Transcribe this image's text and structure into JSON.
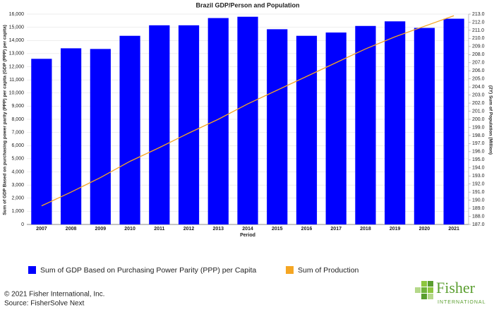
{
  "chart_data": {
    "type": "bar_line",
    "title": "Brazil GDP/Person and Population",
    "x_label": "Period",
    "y_label": "Sum of GDP Based on purchasing power parity (PPP) per capita (GDP (PPP) per capita)",
    "y2_label": "(2Y) Sum of Population (Million)",
    "categories": [
      "2007",
      "2008",
      "2009",
      "2010",
      "2011",
      "2012",
      "2013",
      "2014",
      "2015",
      "2016",
      "2017",
      "2018",
      "2019",
      "2020",
      "2021"
    ],
    "series": [
      {
        "name": "Sum of GDP Based on Purchasing Power Parity (PPP) per Capita",
        "color": "#0000ff",
        "kind": "bar",
        "values": [
          12600,
          13400,
          13350,
          14350,
          15150,
          15150,
          15700,
          15800,
          14850,
          14350,
          14600,
          15100,
          15450,
          14950,
          15650
        ]
      },
      {
        "name": "Sum of Production",
        "color": "#f5a623",
        "kind": "line",
        "axis": "y2",
        "values": [
          189.3,
          191.0,
          192.8,
          194.8,
          196.5,
          198.3,
          200.0,
          201.9,
          203.6,
          205.3,
          207.0,
          208.7,
          210.2,
          211.5,
          212.8
        ]
      }
    ],
    "ylim": [
      0,
      16000
    ],
    "yticks": [
      0,
      {
        "value": 1000,
        "label": "1,000"
      },
      {
        "value": 2000,
        "label": "2,000"
      },
      {
        "value": 3000,
        "label": "3,000"
      },
      {
        "value": 4000,
        "label": "4,000"
      },
      {
        "value": 5000,
        "label": "5,000"
      },
      {
        "value": 6000,
        "label": "6,000"
      },
      {
        "value": 7000,
        "label": "7,000"
      },
      {
        "value": 8000,
        "label": "8,000"
      },
      {
        "value": 9000,
        "label": "9,000"
      },
      {
        "value": 10000,
        "label": "10,000"
      },
      {
        "value": 11000,
        "label": "11,000"
      },
      {
        "value": 12000,
        "label": "12,000"
      },
      {
        "value": 13000,
        "label": "13,000"
      },
      {
        "value": 14000,
        "label": "14,000"
      },
      {
        "value": 15000,
        "label": "15,000"
      },
      {
        "value": 16000,
        "label": "16,000"
      }
    ],
    "y2lim": [
      187,
      213
    ],
    "y2ticks": [
      {
        "value": 187,
        "label": "187.0"
      },
      {
        "value": 188,
        "label": "188.0"
      },
      {
        "value": 189,
        "label": "189.0"
      },
      {
        "value": 190,
        "label": "190.0"
      },
      {
        "value": 191,
        "label": "191.0"
      },
      {
        "value": 192,
        "label": "192.0"
      },
      {
        "value": 193,
        "label": "193.0"
      },
      {
        "value": 194,
        "label": "194.0"
      },
      {
        "value": 195,
        "label": "195.0"
      },
      {
        "value": 196,
        "label": "196.0"
      },
      {
        "value": 197,
        "label": "197.0"
      },
      {
        "value": 198,
        "label": "198.0"
      },
      {
        "value": 199,
        "label": "199.0"
      },
      {
        "value": 200,
        "label": "200.0"
      },
      {
        "value": 201,
        "label": "201.0"
      },
      {
        "value": 202,
        "label": "202.0"
      },
      {
        "value": 203,
        "label": "203.0"
      },
      {
        "value": 204,
        "label": "204.0"
      },
      {
        "value": 205,
        "label": "205.0"
      },
      {
        "value": 206,
        "label": "206.0"
      },
      {
        "value": 207,
        "label": "207.0"
      },
      {
        "value": 208,
        "label": "208.0"
      },
      {
        "value": 209,
        "label": "209.0"
      },
      {
        "value": 210,
        "label": "210.0"
      },
      {
        "value": 211,
        "label": "211.0"
      },
      {
        "value": 212,
        "label": "212.0"
      },
      {
        "value": 213,
        "label": "213.0"
      }
    ],
    "grid": true
  },
  "footer": {
    "copyright": "© 2021 Fisher International, Inc.",
    "source": "Source: FisherSolve Next"
  },
  "logo": {
    "name": "Fisher",
    "sub": "INTERNATIONAL"
  }
}
